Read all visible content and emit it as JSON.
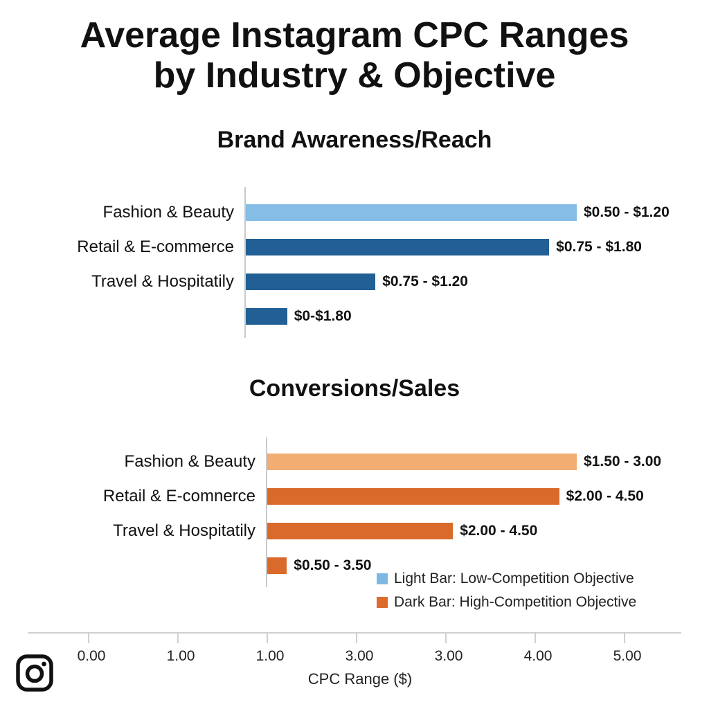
{
  "title_line1": "Average Instagram CPC Ranges",
  "title_line2": "by Industry & Objective",
  "colors": {
    "awareness_light": "#85bde6",
    "awareness_dark": "#215f94",
    "conversion_light": "#f2ad73",
    "conversion_dark": "#da6a2b",
    "legend_light": "#7db8e2",
    "legend_dark": "#dc6c2e"
  },
  "chart_data": {
    "type": "bar",
    "orientation": "horizontal",
    "xlabel": "CPC Range ($)",
    "xticks": [
      "0.00",
      "1.00",
      "1.00",
      "3.00",
      "3.00",
      "4.00",
      "5.00"
    ],
    "panels": [
      {
        "title": "Brand Awareness/Reach",
        "categories": [
          "Fashion & Beauty",
          "Retail & E-commerce",
          "Travel & Hospitatily",
          ""
        ],
        "values": [
          1.2,
          1.1,
          0.47,
          0.15
        ],
        "labels": [
          "$0.50 - $1.20",
          "$0.75 - $1.80",
          "$0.75 - $1.20",
          "$0-$1.80"
        ],
        "shade": [
          "light",
          "dark",
          "dark",
          "dark"
        ],
        "xlim": [
          0,
          1.2
        ]
      },
      {
        "title": "Conversions/Sales",
        "categories": [
          "Fashion & Beauty",
          "Retail & E-comnerce",
          "Travel & Hospitatily",
          ""
        ],
        "values": [
          3.0,
          2.83,
          1.8,
          0.19
        ],
        "labels": [
          "$1.50 - 3.00",
          "$2.00 - 4.50",
          "$2.00 - 4.50",
          "$0.50 - 3.50"
        ],
        "shade": [
          "light",
          "dark",
          "dark",
          "dark"
        ],
        "xlim": [
          0,
          3.0
        ]
      }
    ],
    "legend": [
      {
        "text": "Light Bar: Low-Competition Objective",
        "shade": "light"
      },
      {
        "text": "Dark Bar: High-Competition Objective",
        "shade": "dark"
      }
    ]
  }
}
